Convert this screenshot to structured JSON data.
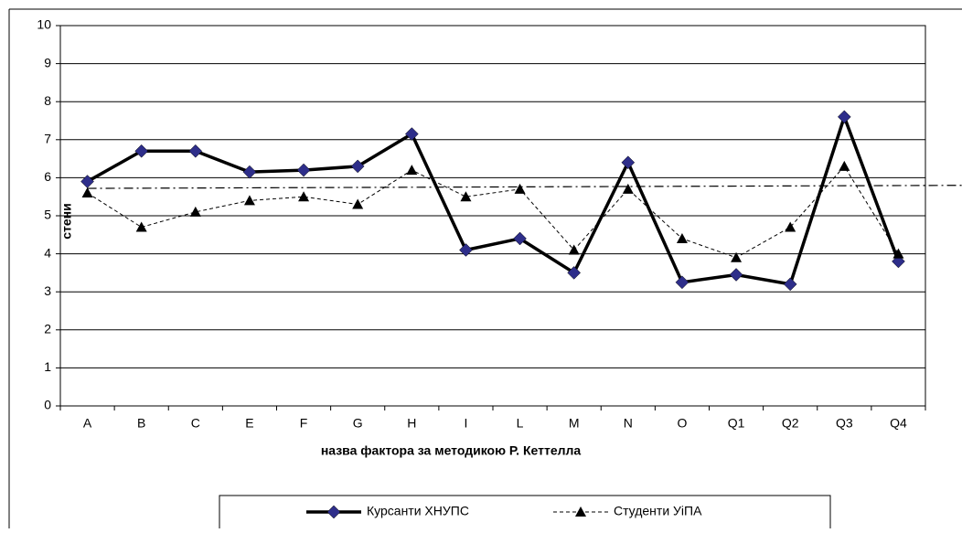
{
  "chart_data": {
    "type": "line",
    "y_label": "стени",
    "x_label": "назва фактора за методикою Р. Кеттелла",
    "categories": [
      "A",
      "B",
      "C",
      "E",
      "F",
      "G",
      "H",
      "I",
      "L",
      "M",
      "N",
      "O",
      "Q1",
      "Q2",
      "Q3",
      "Q4"
    ],
    "series": [
      {
        "name": "Курсанти ХНУПС",
        "color": "#000000",
        "marker_color": "#2e2e8a",
        "marker": "diamond",
        "style": "solid",
        "values": [
          5.9,
          6.7,
          6.7,
          6.15,
          6.2,
          6.3,
          7.15,
          4.1,
          4.4,
          3.5,
          6.4,
          3.25,
          3.45,
          3.2,
          7.6,
          3.8
        ]
      },
      {
        "name": "Студенти УіПА",
        "color": "#000000",
        "marker_color": "#000000",
        "marker": "triangle",
        "style": "dashed",
        "values": [
          5.6,
          4.7,
          5.1,
          5.4,
          5.5,
          5.3,
          6.2,
          5.5,
          5.7,
          4.1,
          5.7,
          4.4,
          3.9,
          4.7,
          6.3,
          4.0
        ]
      }
    ],
    "reference_line": [
      5.72,
      5.8
    ],
    "ylim": [
      0,
      10
    ],
    "yticks": [
      0,
      1,
      2,
      3,
      4,
      5,
      6,
      7,
      8,
      9,
      10
    ],
    "grid": true,
    "legend": "bottom"
  }
}
